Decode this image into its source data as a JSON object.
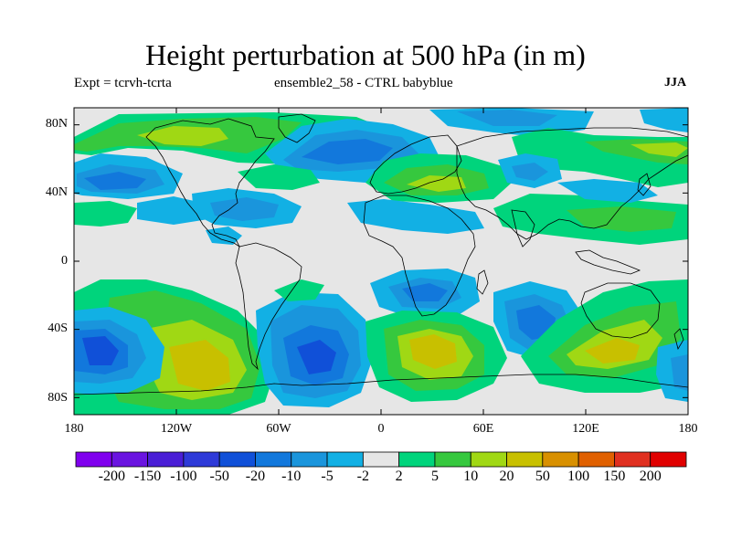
{
  "title": "Height perturbation at 500 hPa (in m)",
  "subtitle_left": "Expt = tcrvh-tcrta",
  "subtitle_center": "ensemble2_58 - CTRL babyblue",
  "season": "JJA",
  "map": {
    "projection": "cylindrical-equidistant",
    "lon_range": [
      -180,
      180
    ],
    "lat_range": [
      -90,
      90
    ],
    "lat_ticks": [
      "80N",
      "40N",
      "0",
      "40S",
      "80S"
    ],
    "lon_ticks": [
      "180",
      "120W",
      "60W",
      "0",
      "60E",
      "120E",
      "180"
    ],
    "background_color": "#e6e6e6",
    "coastline_color": "#000000",
    "field": "500 hPa geopotential height perturbation"
  },
  "colorbar": {
    "levels": [
      "-200",
      "-150",
      "-100",
      "-50",
      "-20",
      "-10",
      "-5",
      "-2",
      "2",
      "5",
      "10",
      "20",
      "50",
      "100",
      "150",
      "200"
    ],
    "colors": [
      "#8000ee",
      "#6a14e0",
      "#4a1ed6",
      "#2e3ad8",
      "#1050d8",
      "#1278dc",
      "#1a95dc",
      "#12b0e4",
      "#e6e6e6",
      "#00d47c",
      "#36c83e",
      "#a0d814",
      "#c8c000",
      "#d89000",
      "#e06000",
      "#e03020",
      "#e00000"
    ]
  }
}
